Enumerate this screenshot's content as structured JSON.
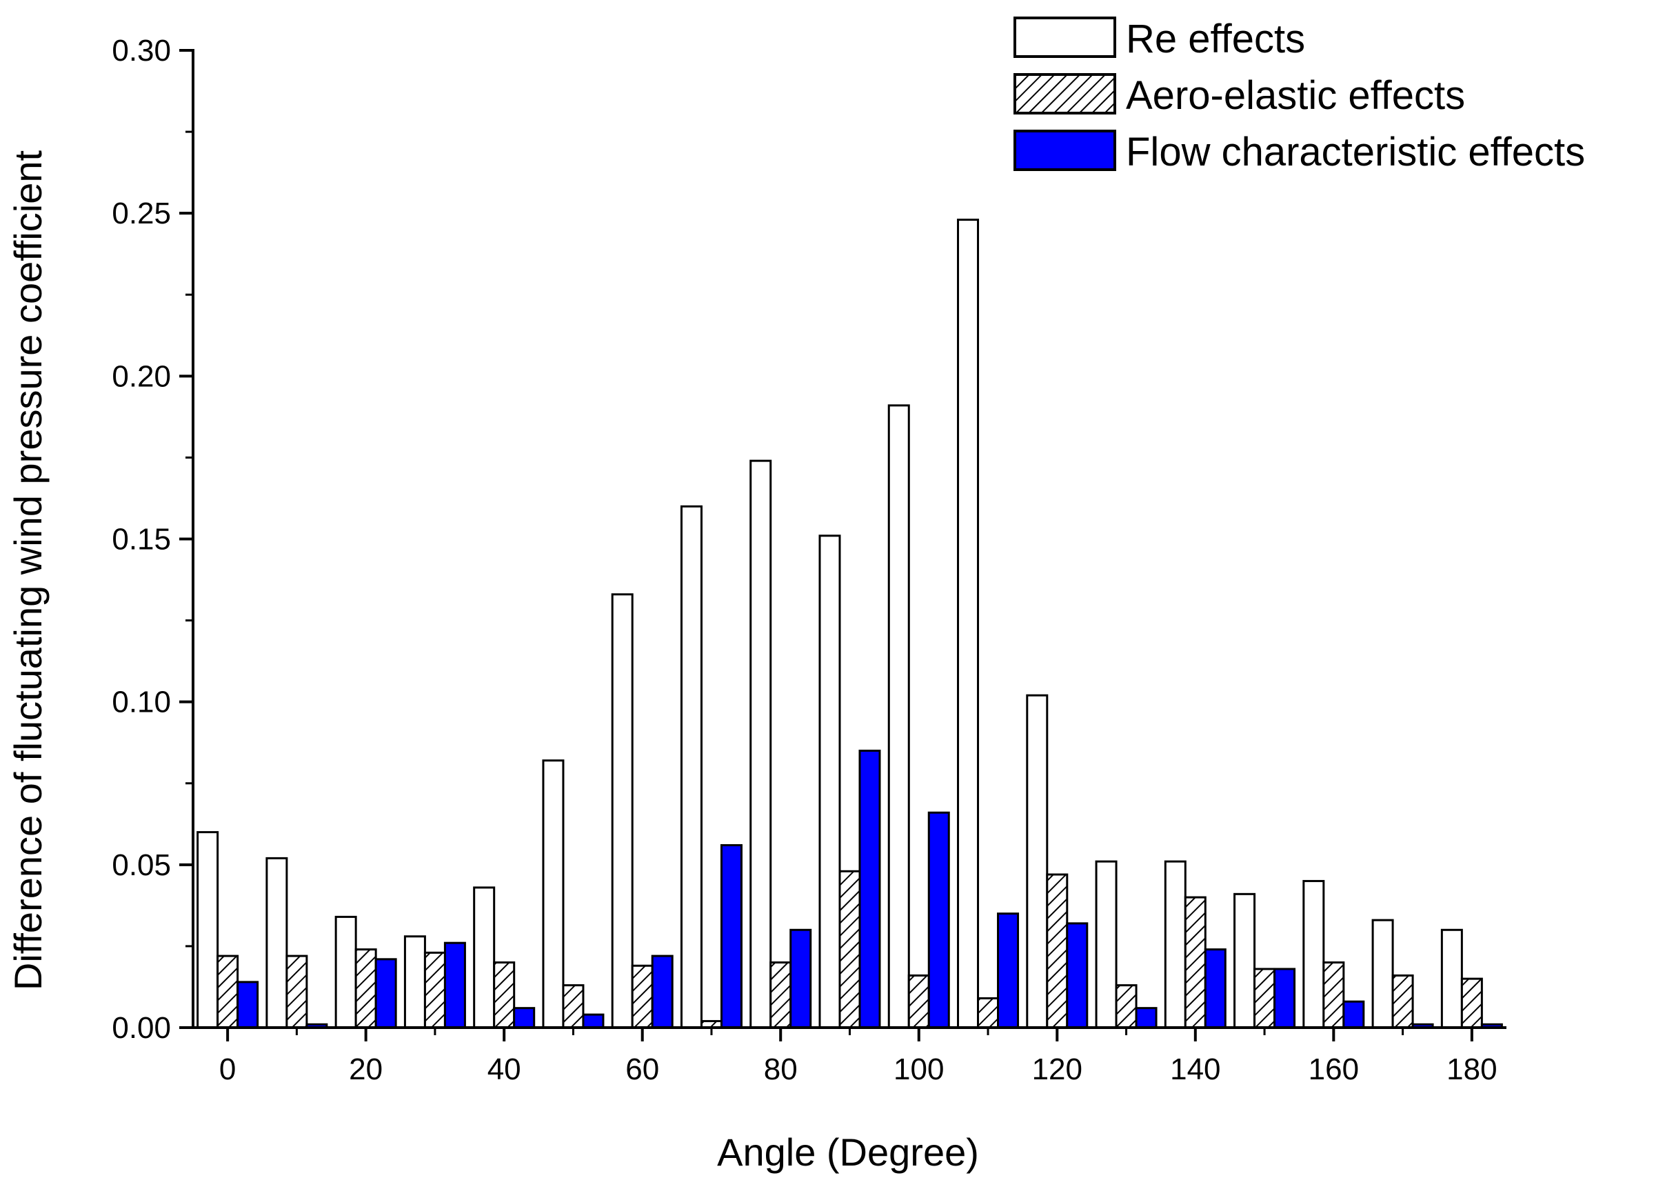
{
  "chart_data": {
    "type": "bar",
    "title": "",
    "xlabel": "Angle (Degree)",
    "ylabel": "Difference of fluctuating wind pressure coefficient",
    "xlim": [
      -5,
      185
    ],
    "ylim": [
      0,
      0.3
    ],
    "xticks": [
      "0",
      "20",
      "40",
      "60",
      "80",
      "100",
      "120",
      "140",
      "160",
      "180"
    ],
    "yticks": [
      "0.00",
      "0.05",
      "0.10",
      "0.15",
      "0.20",
      "0.25",
      "0.30"
    ],
    "legend_position": "top-right",
    "categories": [
      0,
      10,
      20,
      30,
      40,
      50,
      60,
      70,
      80,
      90,
      100,
      110,
      120,
      130,
      140,
      150,
      160,
      170,
      180
    ],
    "series": [
      {
        "name": "Re effects",
        "style": "white",
        "values": [
          0.06,
          0.052,
          0.034,
          0.028,
          0.043,
          0.082,
          0.133,
          0.16,
          0.174,
          0.151,
          0.191,
          0.248,
          0.102,
          0.051,
          0.051,
          0.041,
          0.045,
          0.033,
          0.03
        ]
      },
      {
        "name": "Aero-elastic effects",
        "style": "hatch",
        "values": [
          0.022,
          0.022,
          0.024,
          0.023,
          0.02,
          0.013,
          0.019,
          0.002,
          0.02,
          0.048,
          0.016,
          0.009,
          0.047,
          0.013,
          0.04,
          0.018,
          0.02,
          0.016,
          0.015
        ]
      },
      {
        "name": "Flow characteristic effects",
        "style": "blue",
        "values": [
          0.014,
          0.001,
          0.021,
          0.026,
          0.006,
          0.004,
          0.022,
          0.056,
          0.03,
          0.085,
          0.066,
          0.035,
          0.032,
          0.006,
          0.024,
          0.018,
          0.008,
          0.001,
          0.001
        ]
      }
    ]
  },
  "colors": {
    "blue_fill": "#0000ff",
    "white_fill": "#ffffff",
    "stroke": "#000000"
  }
}
